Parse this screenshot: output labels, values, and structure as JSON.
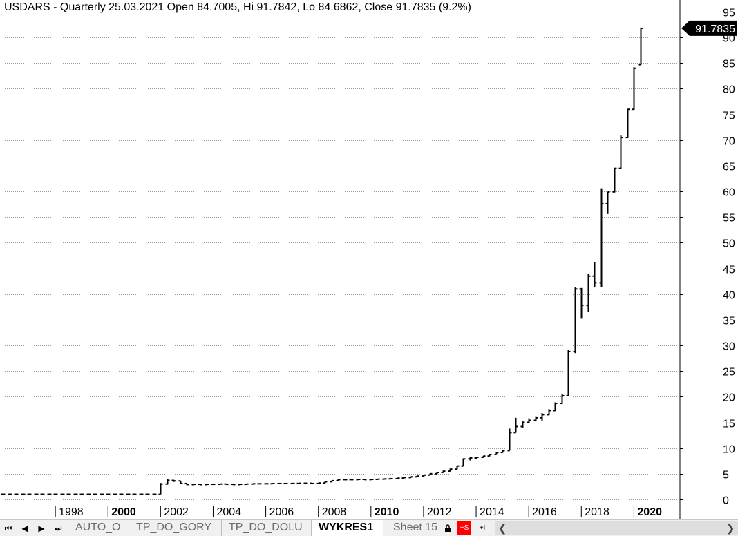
{
  "chart_data": {
    "type": "bar",
    "style": "ohlc",
    "title": "USDARS - Quarterly 25.03.2021 Open 84.7005, Hi 91.7842, Lo 84.6862, Close 91.7835 (9.2%)",
    "price_label": "91.7835",
    "ylim": [
      0,
      96
    ],
    "yticks": [
      0,
      5,
      10,
      15,
      20,
      25,
      30,
      35,
      40,
      45,
      50,
      55,
      60,
      65,
      70,
      75,
      80,
      85,
      90,
      95
    ],
    "xlim": [
      1996.0,
      2021.75
    ],
    "xticks": [
      {
        "year": 1998,
        "label": "1998",
        "bold": false
      },
      {
        "year": 2000,
        "label": "2000",
        "bold": true
      },
      {
        "year": 2002,
        "label": "2002",
        "bold": false
      },
      {
        "year": 2004,
        "label": "2004",
        "bold": false
      },
      {
        "year": 2006,
        "label": "2006",
        "bold": false
      },
      {
        "year": 2008,
        "label": "2008",
        "bold": false
      },
      {
        "year": 2010,
        "label": "2010",
        "bold": true
      },
      {
        "year": 2012,
        "label": "2012",
        "bold": false
      },
      {
        "year": 2014,
        "label": "2014",
        "bold": false
      },
      {
        "year": 2016,
        "label": "2016",
        "bold": false
      },
      {
        "year": 2018,
        "label": "2018",
        "bold": false
      },
      {
        "year": 2020,
        "label": "2020",
        "bold": true
      }
    ],
    "grid": true,
    "start_year": 1996.0,
    "quarter_step": 0.25,
    "bars": [
      [
        1.0,
        1.0,
        1.0,
        1.0
      ],
      [
        1.0,
        1.0,
        1.0,
        1.0
      ],
      [
        1.0,
        1.0,
        1.0,
        1.0
      ],
      [
        1.0,
        1.0,
        1.0,
        1.0
      ],
      [
        1.0,
        1.0,
        1.0,
        1.0
      ],
      [
        1.0,
        1.0,
        1.0,
        1.0
      ],
      [
        1.0,
        1.0,
        1.0,
        1.0
      ],
      [
        1.0,
        1.0,
        1.0,
        1.0
      ],
      [
        1.0,
        1.0,
        1.0,
        1.0
      ],
      [
        1.0,
        1.0,
        1.0,
        1.0
      ],
      [
        1.0,
        1.0,
        1.0,
        1.0
      ],
      [
        1.0,
        1.0,
        1.0,
        1.0
      ],
      [
        1.0,
        1.0,
        1.0,
        1.0
      ],
      [
        1.0,
        1.0,
        1.0,
        1.0
      ],
      [
        1.0,
        1.0,
        1.0,
        1.0
      ],
      [
        1.0,
        1.0,
        1.0,
        1.0
      ],
      [
        1.0,
        1.0,
        1.0,
        1.0
      ],
      [
        1.0,
        1.0,
        1.0,
        1.0
      ],
      [
        1.0,
        1.0,
        1.0,
        1.0
      ],
      [
        1.0,
        1.0,
        1.0,
        1.0
      ],
      [
        1.0,
        1.0,
        1.0,
        1.0
      ],
      [
        1.0,
        1.0,
        1.0,
        1.0
      ],
      [
        1.0,
        1.0,
        1.0,
        1.0
      ],
      [
        1.0,
        1.0,
        1.0,
        1.0
      ],
      [
        1.0,
        3.2,
        1.0,
        3.0
      ],
      [
        3.0,
        3.9,
        2.9,
        3.7
      ],
      [
        3.7,
        3.8,
        3.4,
        3.6
      ],
      [
        3.6,
        3.6,
        3.0,
        3.1
      ],
      [
        3.1,
        3.1,
        2.8,
        2.9
      ],
      [
        2.9,
        3.0,
        2.8,
        2.95
      ],
      [
        2.95,
        3.0,
        2.85,
        2.9
      ],
      [
        2.9,
        3.0,
        2.85,
        2.95
      ],
      [
        2.95,
        3.0,
        2.85,
        2.95
      ],
      [
        2.95,
        3.05,
        2.9,
        3.0
      ],
      [
        3.0,
        3.05,
        2.9,
        2.95
      ],
      [
        2.95,
        3.0,
        2.85,
        2.9
      ],
      [
        2.9,
        3.0,
        2.85,
        2.95
      ],
      [
        2.95,
        3.05,
        2.9,
        3.0
      ],
      [
        3.0,
        3.05,
        2.95,
        3.05
      ],
      [
        3.05,
        3.1,
        3.0,
        3.05
      ],
      [
        3.05,
        3.1,
        3.0,
        3.05
      ],
      [
        3.05,
        3.15,
        3.0,
        3.1
      ],
      [
        3.1,
        3.15,
        3.05,
        3.1
      ],
      [
        3.1,
        3.15,
        3.05,
        3.1
      ],
      [
        3.1,
        3.15,
        3.05,
        3.12
      ],
      [
        3.12,
        3.2,
        3.08,
        3.15
      ],
      [
        3.15,
        3.2,
        3.1,
        3.15
      ],
      [
        3.15,
        3.2,
        3.05,
        3.1
      ],
      [
        3.1,
        3.3,
        3.1,
        3.2
      ],
      [
        3.2,
        3.5,
        3.2,
        3.45
      ],
      [
        3.45,
        3.7,
        3.45,
        3.65
      ],
      [
        3.65,
        3.9,
        3.6,
        3.85
      ],
      [
        3.85,
        3.9,
        3.75,
        3.85
      ],
      [
        3.85,
        3.9,
        3.8,
        3.85
      ],
      [
        3.85,
        3.95,
        3.8,
        3.9
      ],
      [
        3.9,
        3.95,
        3.8,
        3.85
      ],
      [
        3.85,
        3.95,
        3.8,
        3.9
      ],
      [
        3.9,
        4.0,
        3.85,
        3.95
      ],
      [
        3.95,
        4.05,
        3.9,
        4.0
      ],
      [
        4.0,
        4.1,
        3.95,
        4.05
      ],
      [
        4.05,
        4.2,
        4.0,
        4.15
      ],
      [
        4.15,
        4.3,
        4.1,
        4.25
      ],
      [
        4.25,
        4.45,
        4.2,
        4.4
      ],
      [
        4.4,
        4.6,
        4.35,
        4.55
      ],
      [
        4.55,
        4.8,
        4.5,
        4.75
      ],
      [
        4.75,
        5.05,
        4.7,
        5.0
      ],
      [
        5.0,
        5.3,
        4.95,
        5.25
      ],
      [
        5.25,
        5.6,
        5.2,
        5.5
      ],
      [
        5.5,
        6.0,
        5.45,
        5.9
      ],
      [
        5.9,
        6.6,
        5.85,
        6.5
      ],
      [
        6.5,
        8.0,
        6.45,
        7.9
      ],
      [
        7.9,
        8.2,
        7.6,
        8.1
      ],
      [
        8.1,
        8.3,
        7.9,
        8.2
      ],
      [
        8.2,
        8.5,
        8.1,
        8.45
      ],
      [
        8.45,
        8.8,
        8.4,
        8.75
      ],
      [
        8.75,
        9.2,
        8.7,
        9.15
      ],
      [
        9.15,
        9.6,
        9.1,
        9.5
      ],
      [
        9.5,
        13.8,
        9.5,
        13.0
      ],
      [
        13.0,
        15.9,
        13.0,
        14.2
      ],
      [
        14.2,
        15.2,
        14.0,
        15.0
      ],
      [
        15.0,
        15.8,
        14.9,
        15.4
      ],
      [
        15.4,
        16.2,
        15.2,
        15.9
      ],
      [
        15.9,
        16.8,
        15.2,
        16.5
      ],
      [
        16.5,
        17.6,
        16.4,
        17.3
      ],
      [
        17.3,
        18.9,
        17.2,
        18.7
      ],
      [
        18.7,
        20.6,
        18.6,
        20.2
      ],
      [
        20.2,
        29.2,
        20.1,
        28.8
      ],
      [
        28.8,
        41.3,
        28.5,
        41.0
      ],
      [
        41.0,
        41.2,
        35.2,
        37.8
      ],
      [
        37.8,
        44.0,
        36.6,
        43.5
      ],
      [
        43.5,
        46.2,
        41.3,
        42.2
      ],
      [
        42.2,
        60.6,
        41.4,
        57.6
      ],
      [
        57.6,
        59.9,
        55.6,
        59.9
      ],
      [
        59.9,
        64.6,
        59.8,
        64.5
      ],
      [
        64.5,
        70.9,
        64.4,
        70.5
      ],
      [
        70.5,
        76.1,
        70.4,
        76.0
      ],
      [
        76.0,
        84.2,
        75.9,
        84.0
      ],
      [
        84.7005,
        91.7842,
        84.6862,
        91.7835
      ]
    ]
  },
  "tabs": {
    "sheets": [
      {
        "label": "AUTO_O",
        "active": false
      },
      {
        "label": "TP_DO_GORY",
        "active": false
      },
      {
        "label": "TP_DO_DOLU",
        "active": false
      },
      {
        "label": "WYKRES1",
        "active": true
      },
      {
        "label": "Sheet 15",
        "active": false
      }
    ],
    "lock_icon": "lock-icon",
    "s_button": "+S",
    "i_button": "+I",
    "s_button_color": "#ff0000"
  }
}
